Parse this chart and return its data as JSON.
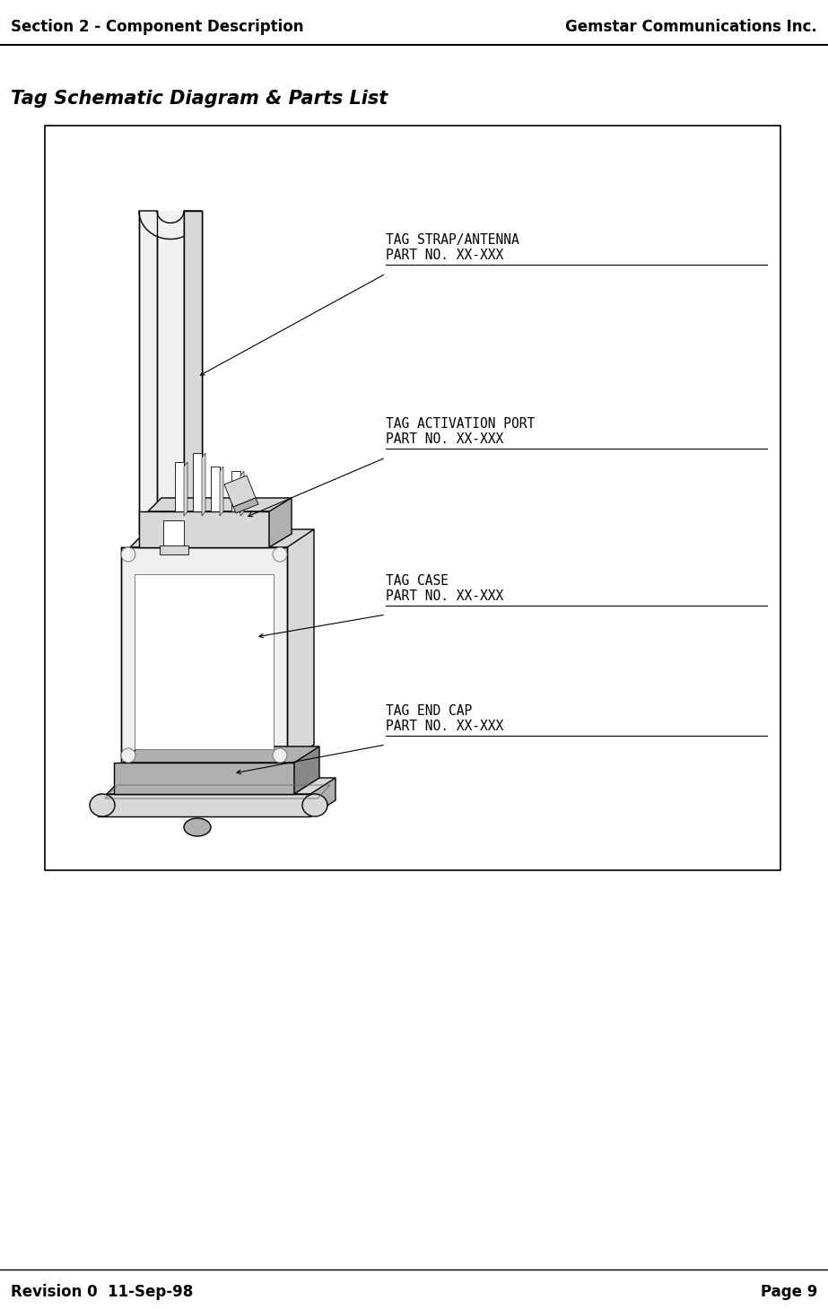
{
  "header_left": "Section 2 - Component Description",
  "header_right": "Gemstar Communications Inc.",
  "footer_left": "Revision 0  11-Sep-98",
  "footer_right": "Page 9",
  "section_title": "Tag Schematic Diagram & Parts List",
  "label1_line1": "TAG STRAP/ANTENNA",
  "label1_line2": "PART NO. XX-XXX",
  "label2_line1": "TAG ACTIVATION PORT",
  "label2_line2": "PART NO. XX-XXX",
  "label3_line1": "TAG CASE",
  "label3_line2": "PART NO. XX-XXX",
  "label4_line1": "TAG END CAP",
  "label4_line2": "PART NO. XX-XXX",
  "bg_color": "#ffffff",
  "box_border_color": "#000000",
  "header_fontsize": 12,
  "title_fontsize": 15,
  "label_fontsize": 10.5,
  "footer_fontsize": 12
}
